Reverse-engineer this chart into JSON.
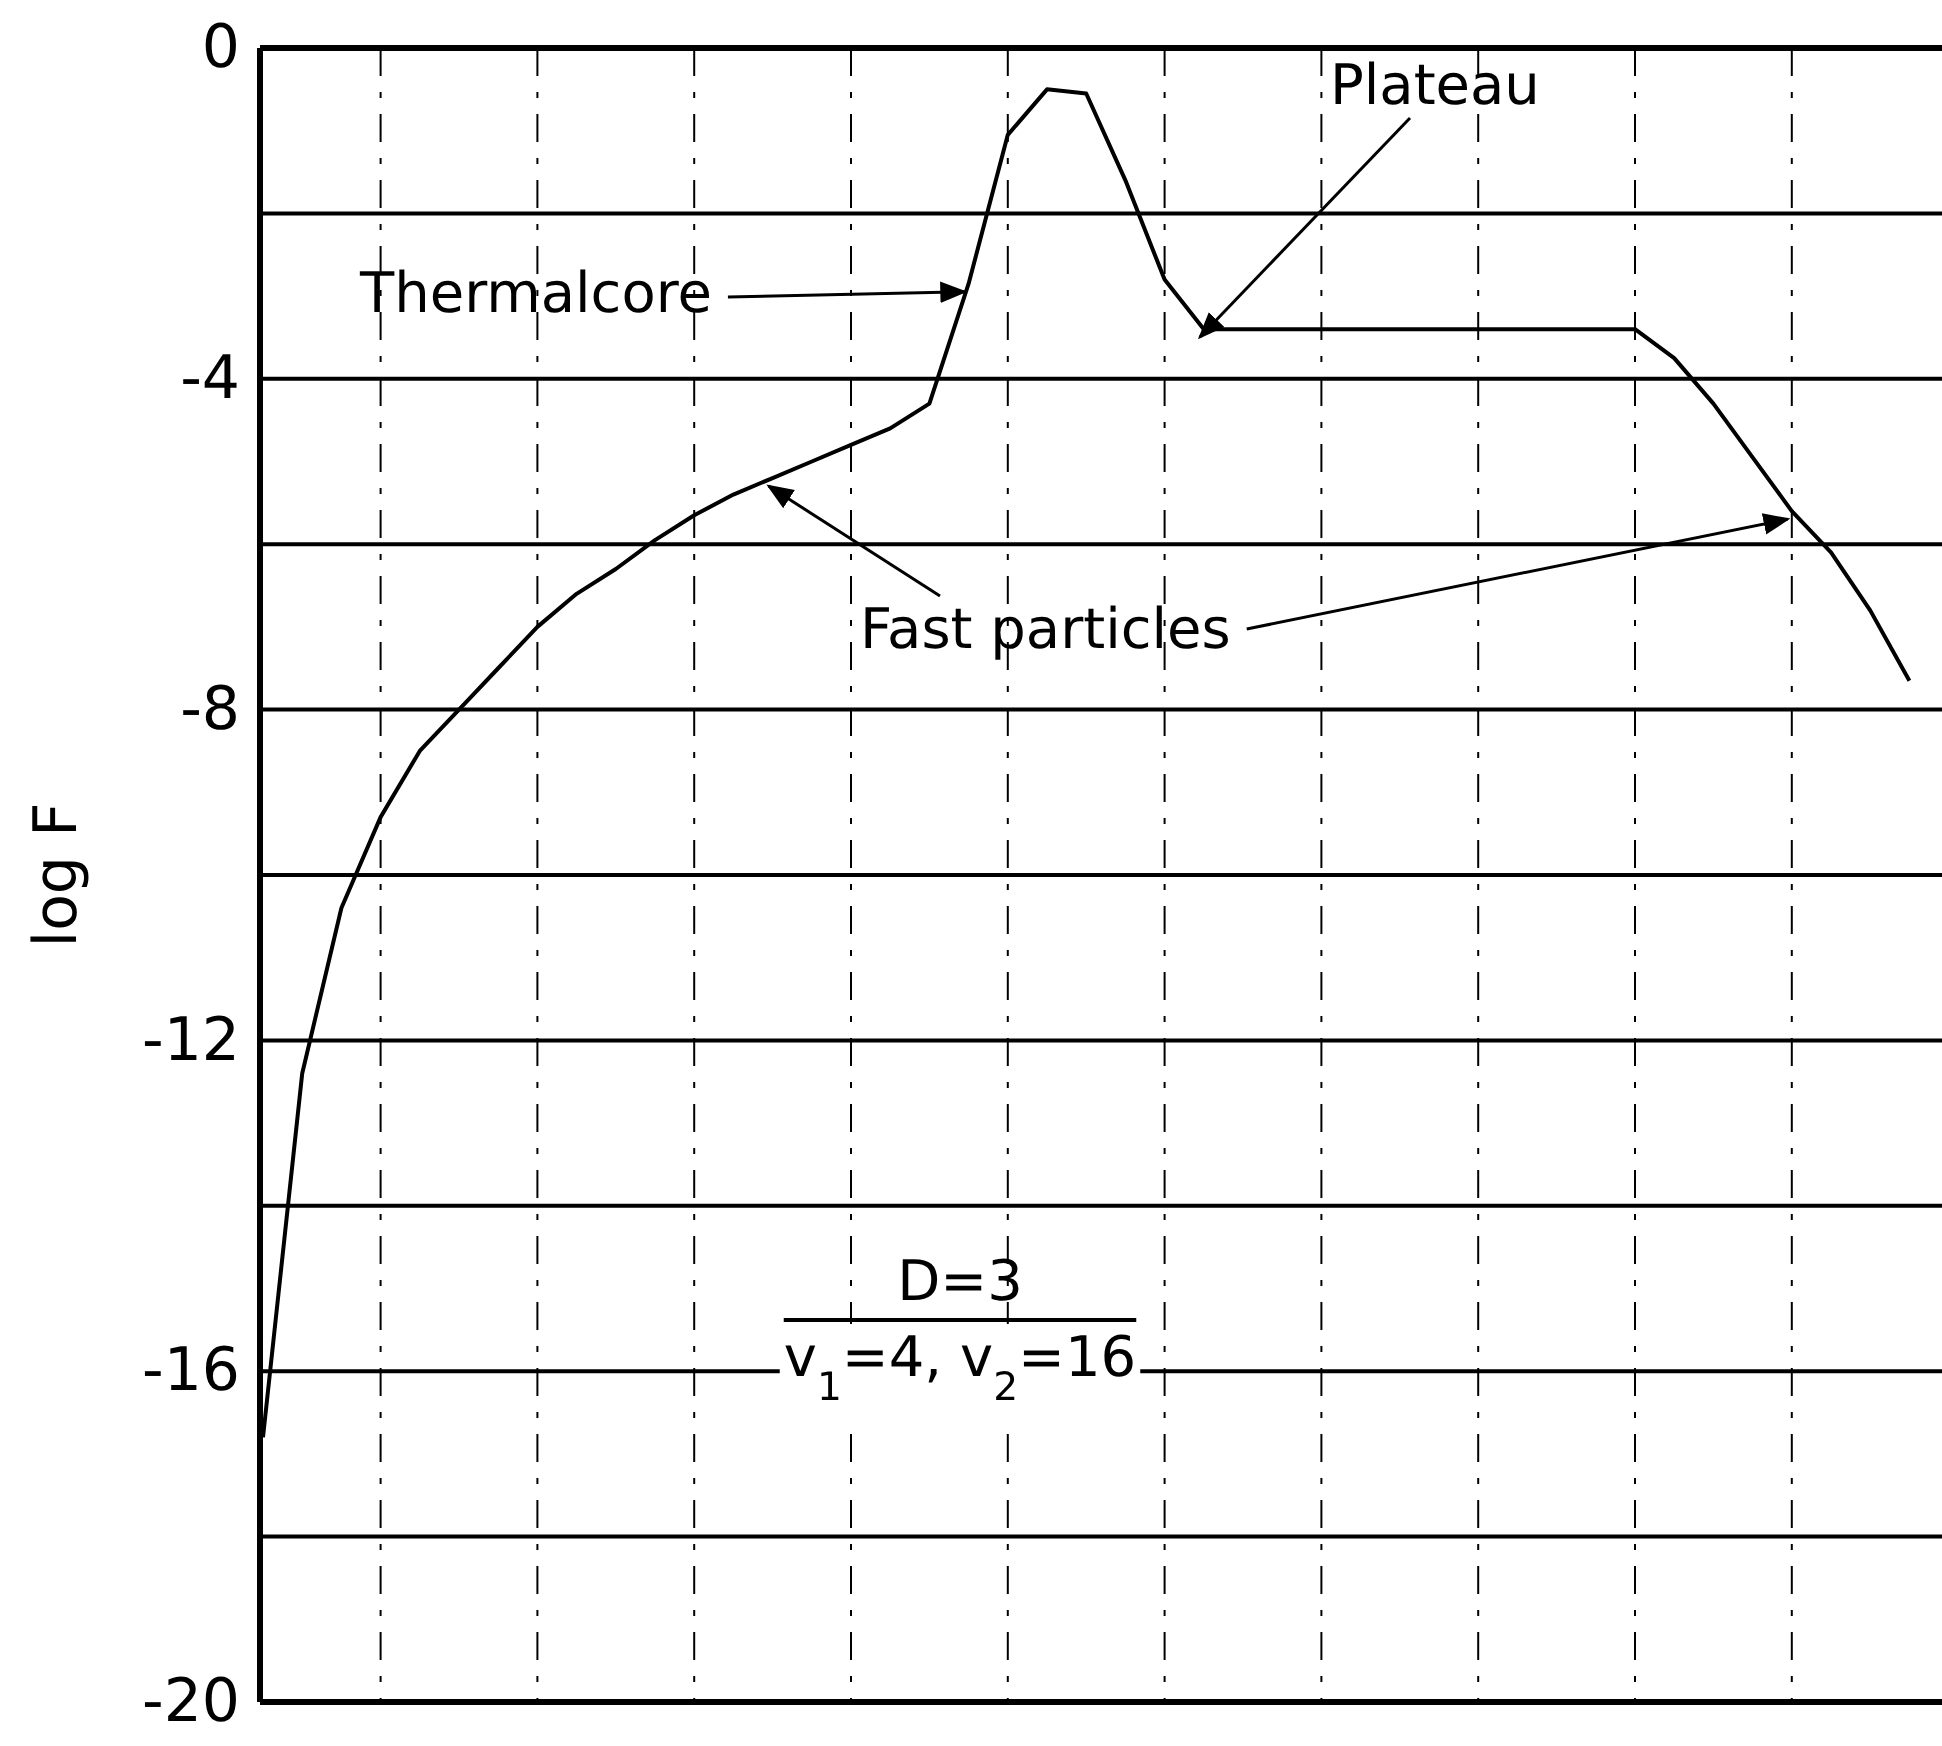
{
  "chart_data": {
    "type": "line",
    "ylabel": "log F",
    "categories": [
      null,
      null,
      null,
      null,
      null,
      null,
      null,
      null,
      null,
      null,
      null,
      null,
      null,
      null,
      null,
      null,
      null,
      null,
      null,
      null,
      null,
      null,
      null,
      null,
      null,
      null,
      null,
      null,
      null,
      null,
      null,
      null,
      null,
      null,
      null,
      null,
      null,
      null,
      null,
      null,
      null,
      null,
      null
    ],
    "series": [
      {
        "color": "#000000",
        "values": [
          -16.8,
          -12.4,
          -10.4,
          -9.3,
          -8.5,
          -8.0,
          -7.5,
          -7.0,
          -6.6,
          -6.3,
          -5.95,
          -5.65,
          -5.4,
          -5.2,
          -5.0,
          -4.8,
          -4.6,
          -4.3,
          -2.85,
          -1.05,
          -0.5,
          -0.55,
          -1.6,
          -2.8,
          -3.4,
          -3.4,
          -3.4,
          -3.4,
          -3.4,
          -3.4,
          -3.4,
          -3.4,
          -3.4,
          -3.4,
          -3.4,
          -3.4,
          -3.75,
          -4.3,
          -4.95,
          -5.6,
          -6.1,
          -6.8,
          -7.65
        ]
      }
    ],
    "ylim": [
      -20,
      0
    ],
    "yticks": [
      -20,
      {
        "value": -18,
        "label": null
      },
      -16,
      {
        "value": -14,
        "label": null
      },
      -12,
      {
        "value": -10,
        "label": null
      },
      -8,
      {
        "value": -6,
        "label": null
      },
      -4,
      {
        "value": -2,
        "label": null
      },
      0
    ],
    "grid": true,
    "marker": "none",
    "line_style": "solid",
    "annotations": [
      "Thermalcore",
      "Plateau",
      "Fast particles",
      "D=3",
      "v$_{1}$=4, v$_{2}$=16"
    ]
  }
}
